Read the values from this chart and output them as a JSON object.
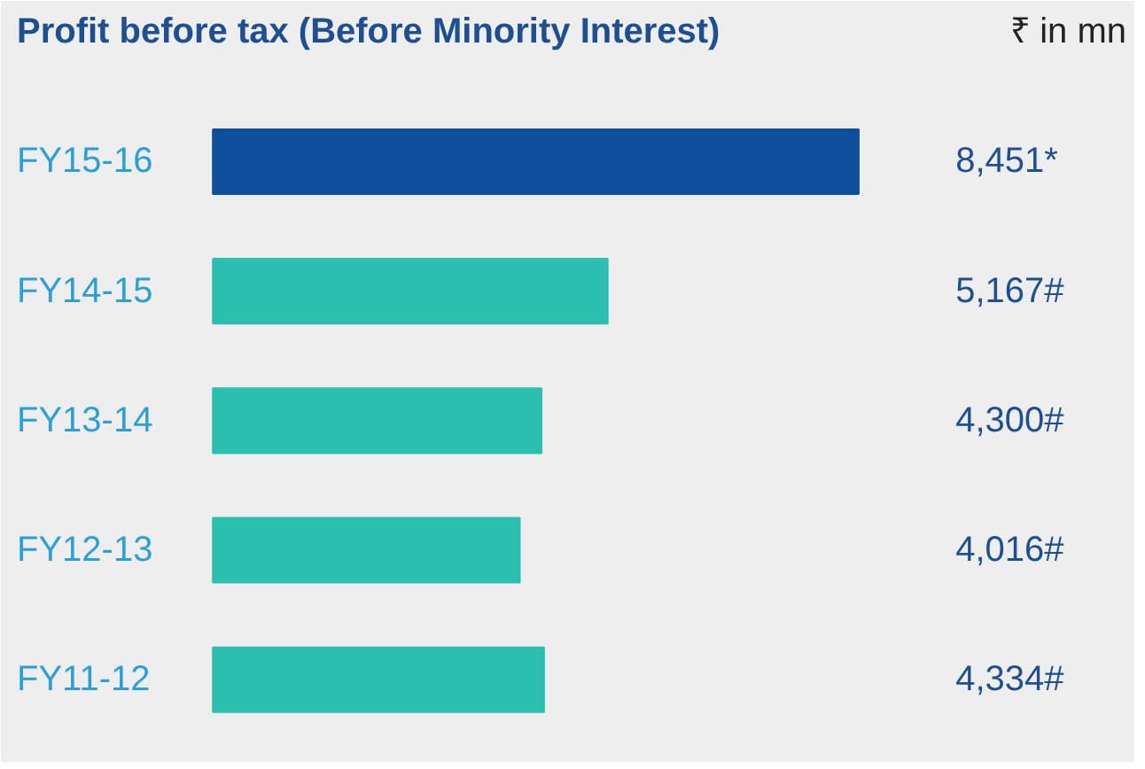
{
  "chart_data": {
    "type": "bar",
    "orientation": "horizontal",
    "title": "Profit before tax (Before Minority Interest)",
    "subtitle": "₹ in mn",
    "categories": [
      "FY15-16",
      "FY14-15",
      "FY13-14",
      "FY12-13",
      "FY11-12"
    ],
    "values": [
      8451,
      5167,
      4300,
      4016,
      4334
    ],
    "colors": [
      "#0d4f9a",
      "#2bbfb0",
      "#2bbfb0",
      "#2bbfb0",
      "#2bbfb0"
    ],
    "value_labels": [
      "8,451*",
      "5,167#",
      "4,300#",
      "4,016#",
      "4,334#"
    ],
    "grid": false
  }
}
